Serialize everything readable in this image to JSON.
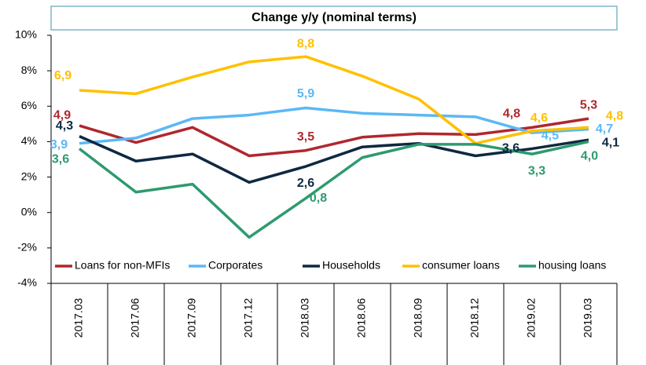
{
  "chart_data": {
    "type": "line",
    "title": "Change y/y (nominal terms)",
    "categories": [
      "2017.03",
      "2017.06",
      "2017.09",
      "2017.12",
      "2018.03",
      "2018.06",
      "2018.09",
      "2018.12",
      "2019.02",
      "2019.03"
    ],
    "ylim": [
      -4,
      10
    ],
    "yticks": [
      {
        "value": -4,
        "label": "-4%"
      },
      {
        "value": -2,
        "label": "-2%"
      },
      {
        "value": 0,
        "label": "0%"
      },
      {
        "value": 2,
        "label": "2%"
      },
      {
        "value": 4,
        "label": "4%"
      },
      {
        "value": 6,
        "label": "6%"
      },
      {
        "value": 8,
        "label": "8%"
      },
      {
        "value": 10,
        "label": "10%"
      }
    ],
    "legend": "bottom",
    "series": [
      {
        "name": "Loans for non-MFIs",
        "color": "#b0272d",
        "values": [
          4.9,
          3.95,
          4.8,
          3.2,
          3.5,
          4.25,
          4.45,
          4.4,
          4.8,
          5.3
        ],
        "value_labels": [
          "4,9",
          null,
          null,
          null,
          "3,5",
          null,
          null,
          null,
          "4,8",
          "5,3"
        ]
      },
      {
        "name": "Corporates",
        "color": "#5bb8f5",
        "values": [
          3.9,
          4.2,
          5.3,
          5.5,
          5.9,
          5.6,
          5.5,
          5.4,
          4.5,
          4.7
        ],
        "value_labels": [
          "3,9",
          null,
          null,
          null,
          "5,9",
          null,
          null,
          null,
          "4,5",
          "4,7"
        ]
      },
      {
        "name": "Households",
        "color": "#0e2841",
        "values": [
          4.3,
          2.9,
          3.3,
          1.7,
          2.6,
          3.7,
          3.9,
          3.2,
          3.6,
          4.1
        ],
        "value_labels": [
          "4,3",
          null,
          null,
          null,
          "2,6",
          null,
          null,
          null,
          "3,6",
          "4,1"
        ]
      },
      {
        "name": "consumer loans",
        "color": "#ffc000",
        "values": [
          6.9,
          6.7,
          7.65,
          8.5,
          8.8,
          7.7,
          6.4,
          3.9,
          4.6,
          4.8
        ],
        "value_labels": [
          "6,9",
          null,
          null,
          null,
          "8,8",
          null,
          null,
          null,
          "4,6",
          "4,8"
        ]
      },
      {
        "name": "housing loans",
        "color": "#2e9a6e",
        "values": [
          3.6,
          1.15,
          1.6,
          -1.4,
          0.8,
          3.1,
          3.85,
          3.85,
          3.3,
          4.0
        ],
        "value_labels": [
          "3,6",
          null,
          null,
          null,
          "0,8",
          null,
          null,
          null,
          "3,3",
          "4,0"
        ]
      }
    ]
  }
}
